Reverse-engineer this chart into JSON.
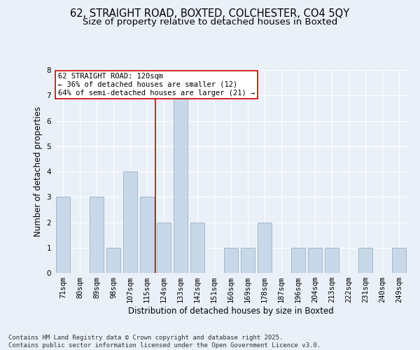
{
  "title_line1": "62, STRAIGHT ROAD, BOXTED, COLCHESTER, CO4 5QY",
  "title_line2": "Size of property relative to detached houses in Boxted",
  "xlabel": "Distribution of detached houses by size in Boxted",
  "ylabel": "Number of detached properties",
  "categories": [
    "71sqm",
    "80sqm",
    "89sqm",
    "98sqm",
    "107sqm",
    "115sqm",
    "124sqm",
    "133sqm",
    "142sqm",
    "151sqm",
    "160sqm",
    "169sqm",
    "178sqm",
    "187sqm",
    "196sqm",
    "204sqm",
    "213sqm",
    "222sqm",
    "231sqm",
    "240sqm",
    "249sqm"
  ],
  "values": [
    3,
    0,
    3,
    1,
    4,
    3,
    2,
    7,
    2,
    0,
    1,
    1,
    2,
    0,
    1,
    1,
    1,
    0,
    1,
    0,
    1
  ],
  "bar_color": "#c8d8e8",
  "bar_edge_color": "#a0b8cc",
  "highlight_bar_index": 5,
  "vline_color": "#cc0000",
  "annotation_text": "62 STRAIGHT ROAD: 120sqm\n← 36% of detached houses are smaller (12)\n64% of semi-detached houses are larger (21) →",
  "annotation_box_color": "#ffffff",
  "annotation_box_edge": "#cc0000",
  "ylim": [
    0,
    8
  ],
  "yticks": [
    0,
    1,
    2,
    3,
    4,
    5,
    6,
    7,
    8
  ],
  "background_color": "#eaf0f8",
  "grid_color": "#ffffff",
  "footer_line1": "Contains HM Land Registry data © Crown copyright and database right 2025.",
  "footer_line2": "Contains public sector information licensed under the Open Government Licence v3.0.",
  "title_fontsize": 10.5,
  "subtitle_fontsize": 9.5,
  "axis_label_fontsize": 8.5,
  "tick_fontsize": 7.5,
  "annotation_fontsize": 7.5,
  "footer_fontsize": 6.5
}
